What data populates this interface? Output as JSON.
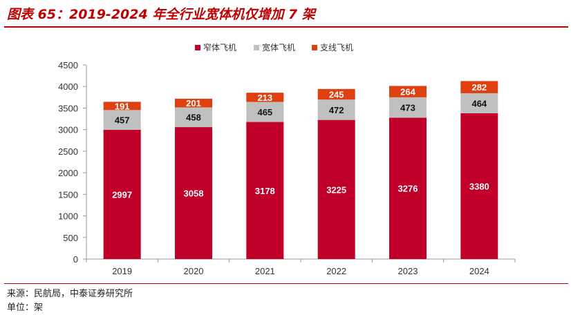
{
  "header": {
    "title": "图表 65：2019-2024 年全行业宽体机仅增加 7 架"
  },
  "footer": {
    "source": "来源：民航局，中泰证券研究所",
    "unit": "单位：架"
  },
  "colors": {
    "narrow": "#c00028",
    "wide": "#c0c0c0",
    "regional": "#e04010",
    "accent": "#c00000"
  },
  "chart_data": {
    "type": "bar",
    "stacked": true,
    "categories": [
      "2019",
      "2020",
      "2021",
      "2022",
      "2023",
      "2024"
    ],
    "series": [
      {
        "name": "窄体飞机",
        "values": [
          2997,
          3058,
          3178,
          3225,
          3276,
          3380
        ],
        "color": "#c00028"
      },
      {
        "name": "宽体飞机",
        "values": [
          457,
          458,
          465,
          472,
          473,
          464
        ],
        "color": "#c0c0c0"
      },
      {
        "name": "支线飞机",
        "values": [
          191,
          201,
          213,
          245,
          264,
          282
        ],
        "color": "#e04010"
      }
    ],
    "ylim": [
      0,
      4500
    ],
    "yticks": [
      "0",
      "500",
      "1000",
      "1500",
      "2000",
      "2500",
      "3000",
      "3500",
      "4000",
      "4500"
    ],
    "legend_position": "top-center",
    "grid": false
  }
}
